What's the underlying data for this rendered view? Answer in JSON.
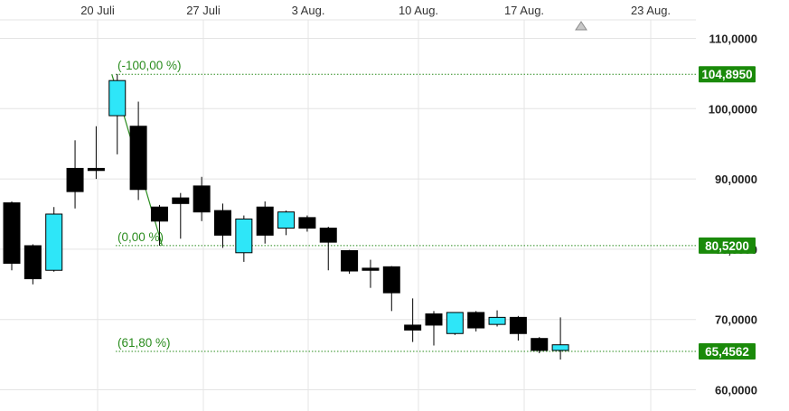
{
  "chart_data": {
    "type": "candlestick",
    "x_tick_labels": [
      "20 Juli",
      "27 Juli",
      "3 Aug.",
      "10 Aug.",
      "17 Aug.",
      "23 Aug."
    ],
    "y_tick_labels": [
      "110,0000",
      "100,0000",
      "90,0000",
      "80,0000",
      "70,0000",
      "60,0000"
    ],
    "y_ticks": [
      110,
      100,
      90,
      80,
      70,
      60
    ],
    "ylim": [
      58.5,
      115.5
    ],
    "grid": true,
    "candles": [
      {
        "o": 78.0,
        "h": 86.8,
        "l": 77.0,
        "c": 86.6,
        "color": "black"
      },
      {
        "o": 80.5,
        "h": 80.7,
        "l": 75.0,
        "c": 75.8,
        "color": "black"
      },
      {
        "o": 77.0,
        "h": 86.0,
        "l": 76.8,
        "c": 85.0,
        "color": "cyan"
      },
      {
        "o": 88.2,
        "h": 95.5,
        "l": 85.8,
        "c": 91.5,
        "color": "black"
      },
      {
        "o": 91.2,
        "h": 97.5,
        "l": 90.0,
        "c": 91.5,
        "color": "black"
      },
      {
        "o": 99.0,
        "h": 104.9,
        "l": 93.5,
        "c": 104.0,
        "color": "cyan"
      },
      {
        "o": 97.5,
        "h": 101.0,
        "l": 87.0,
        "c": 88.5,
        "color": "black"
      },
      {
        "o": 86.0,
        "h": 86.3,
        "l": 80.5,
        "c": 84.0,
        "color": "black"
      },
      {
        "o": 86.5,
        "h": 88.0,
        "l": 81.5,
        "c": 87.3,
        "color": "black"
      },
      {
        "o": 89.0,
        "h": 90.3,
        "l": 84.0,
        "c": 85.3,
        "color": "black"
      },
      {
        "o": 85.5,
        "h": 86.5,
        "l": 80.2,
        "c": 82.0,
        "color": "black"
      },
      {
        "o": 79.5,
        "h": 84.8,
        "l": 78.2,
        "c": 84.3,
        "color": "cyan"
      },
      {
        "o": 86.0,
        "h": 86.8,
        "l": 80.8,
        "c": 82.0,
        "color": "black"
      },
      {
        "o": 83.0,
        "h": 85.5,
        "l": 82.0,
        "c": 85.3,
        "color": "cyan"
      },
      {
        "o": 84.5,
        "h": 84.8,
        "l": 82.5,
        "c": 83.0,
        "color": "black"
      },
      {
        "o": 83.0,
        "h": 83.2,
        "l": 77.0,
        "c": 81.0,
        "color": "black"
      },
      {
        "o": 79.8,
        "h": 79.9,
        "l": 76.5,
        "c": 76.9,
        "color": "black"
      },
      {
        "o": 77.3,
        "h": 78.5,
        "l": 74.5,
        "c": 77.0,
        "color": "black"
      },
      {
        "o": 77.5,
        "h": 77.6,
        "l": 71.2,
        "c": 73.8,
        "color": "black"
      },
      {
        "o": 69.2,
        "h": 73.0,
        "l": 66.8,
        "c": 68.5,
        "color": "black"
      },
      {
        "o": 70.8,
        "h": 71.2,
        "l": 66.3,
        "c": 69.2,
        "color": "black"
      },
      {
        "o": 68.0,
        "h": 71.0,
        "l": 67.8,
        "c": 71.0,
        "color": "cyan"
      },
      {
        "o": 71.0,
        "h": 71.2,
        "l": 68.3,
        "c": 68.8,
        "color": "black"
      },
      {
        "o": 69.3,
        "h": 71.3,
        "l": 69.0,
        "c": 70.3,
        "color": "cyan"
      },
      {
        "o": 70.3,
        "h": 70.5,
        "l": 67.0,
        "c": 68.0,
        "color": "black"
      },
      {
        "o": 67.3,
        "h": 67.5,
        "l": 65.2,
        "c": 65.6,
        "color": "black"
      },
      {
        "o": 65.6,
        "h": 70.3,
        "l": 64.3,
        "c": 66.4,
        "color": "cyan"
      }
    ],
    "fib_levels": [
      {
        "label": "(-100,00 %)",
        "price": 104.895,
        "badge": "104,8950"
      },
      {
        "label": "(0,00 %)",
        "price": 80.52,
        "badge": "80,5200"
      },
      {
        "label": "(61,80 %)",
        "price": 65.4562,
        "badge": "65,4562"
      }
    ],
    "trend_line": {
      "from_candle": 5,
      "from_price": 104.9,
      "to_candle": 7,
      "to_price": 80.5
    },
    "colors": {
      "up_candle": "#2ee6f8",
      "down_candle": "#000000",
      "fib": "#2a8c1e",
      "badge": "#1a8a0a",
      "grid": "#e4e4e4"
    }
  }
}
